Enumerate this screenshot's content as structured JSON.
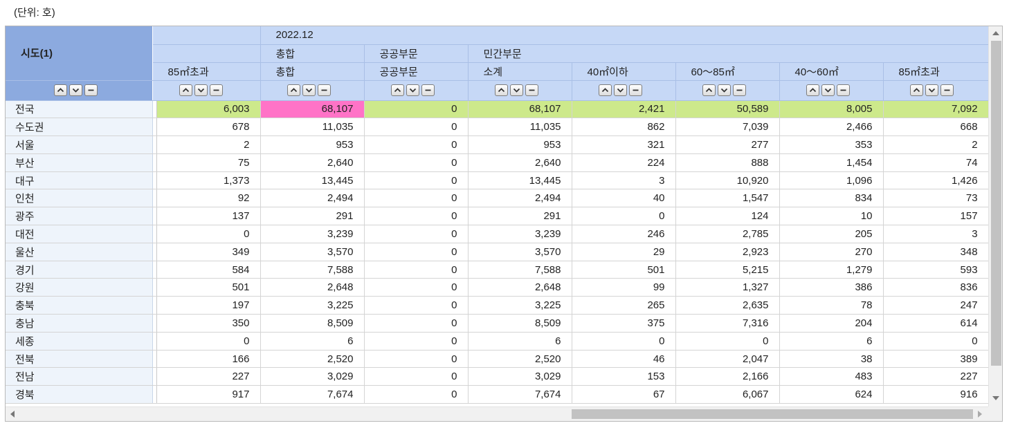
{
  "unit_label": "(단위: 호)",
  "stub_header": "시도(1)",
  "header": {
    "period": "2022.12",
    "group_total": "총합",
    "group_public": "공공부문",
    "group_private": "민간부문",
    "cols": [
      "85㎡초과",
      "총합",
      "공공부문",
      "소계",
      "40㎡이하",
      "60～85㎡",
      "40～60㎡",
      "85㎡초과"
    ]
  },
  "sort_icons": [
    "sort-ascending-icon",
    "sort-descending-icon",
    "collapse-icon"
  ],
  "rows": [
    {
      "label": "전국",
      "values": [
        "6,003",
        "68,107",
        "0",
        "68,107",
        "2,421",
        "50,589",
        "8,005",
        "7,092"
      ]
    },
    {
      "label": "수도권",
      "values": [
        "678",
        "11,035",
        "0",
        "11,035",
        "862",
        "7,039",
        "2,466",
        "668"
      ]
    },
    {
      "label": "서울",
      "values": [
        "2",
        "953",
        "0",
        "953",
        "321",
        "277",
        "353",
        "2"
      ]
    },
    {
      "label": "부산",
      "values": [
        "75",
        "2,640",
        "0",
        "2,640",
        "224",
        "888",
        "1,454",
        "74"
      ]
    },
    {
      "label": "대구",
      "values": [
        "1,373",
        "13,445",
        "0",
        "13,445",
        "3",
        "10,920",
        "1,096",
        "1,426"
      ]
    },
    {
      "label": "인천",
      "values": [
        "92",
        "2,494",
        "0",
        "2,494",
        "40",
        "1,547",
        "834",
        "73"
      ]
    },
    {
      "label": "광주",
      "values": [
        "137",
        "291",
        "0",
        "291",
        "0",
        "124",
        "10",
        "157"
      ]
    },
    {
      "label": "대전",
      "values": [
        "0",
        "3,239",
        "0",
        "3,239",
        "246",
        "2,785",
        "205",
        "3"
      ]
    },
    {
      "label": "울산",
      "values": [
        "349",
        "3,570",
        "0",
        "3,570",
        "29",
        "2,923",
        "270",
        "348"
      ]
    },
    {
      "label": "경기",
      "values": [
        "584",
        "7,588",
        "0",
        "7,588",
        "501",
        "5,215",
        "1,279",
        "593"
      ]
    },
    {
      "label": "강원",
      "values": [
        "501",
        "2,648",
        "0",
        "2,648",
        "99",
        "1,327",
        "386",
        "836"
      ]
    },
    {
      "label": "충북",
      "values": [
        "197",
        "3,225",
        "0",
        "3,225",
        "265",
        "2,635",
        "78",
        "247"
      ]
    },
    {
      "label": "충남",
      "values": [
        "350",
        "8,509",
        "0",
        "8,509",
        "375",
        "7,316",
        "204",
        "614"
      ]
    },
    {
      "label": "세종",
      "values": [
        "0",
        "6",
        "0",
        "6",
        "0",
        "0",
        "6",
        "0"
      ]
    },
    {
      "label": "전북",
      "values": [
        "166",
        "2,520",
        "0",
        "2,520",
        "46",
        "2,047",
        "38",
        "389"
      ]
    },
    {
      "label": "전남",
      "values": [
        "227",
        "3,029",
        "0",
        "3,029",
        "153",
        "2,166",
        "483",
        "227"
      ]
    },
    {
      "label": "경북",
      "values": [
        "917",
        "7,674",
        "0",
        "7,674",
        "67",
        "6,067",
        "624",
        "916"
      ]
    }
  ],
  "colors": {
    "header_bg": "#c6d8f6",
    "stub_header_bg": "#8caadf",
    "total_row_bg": "#cde98b",
    "highlight_cell_bg": "#ff73c7"
  }
}
